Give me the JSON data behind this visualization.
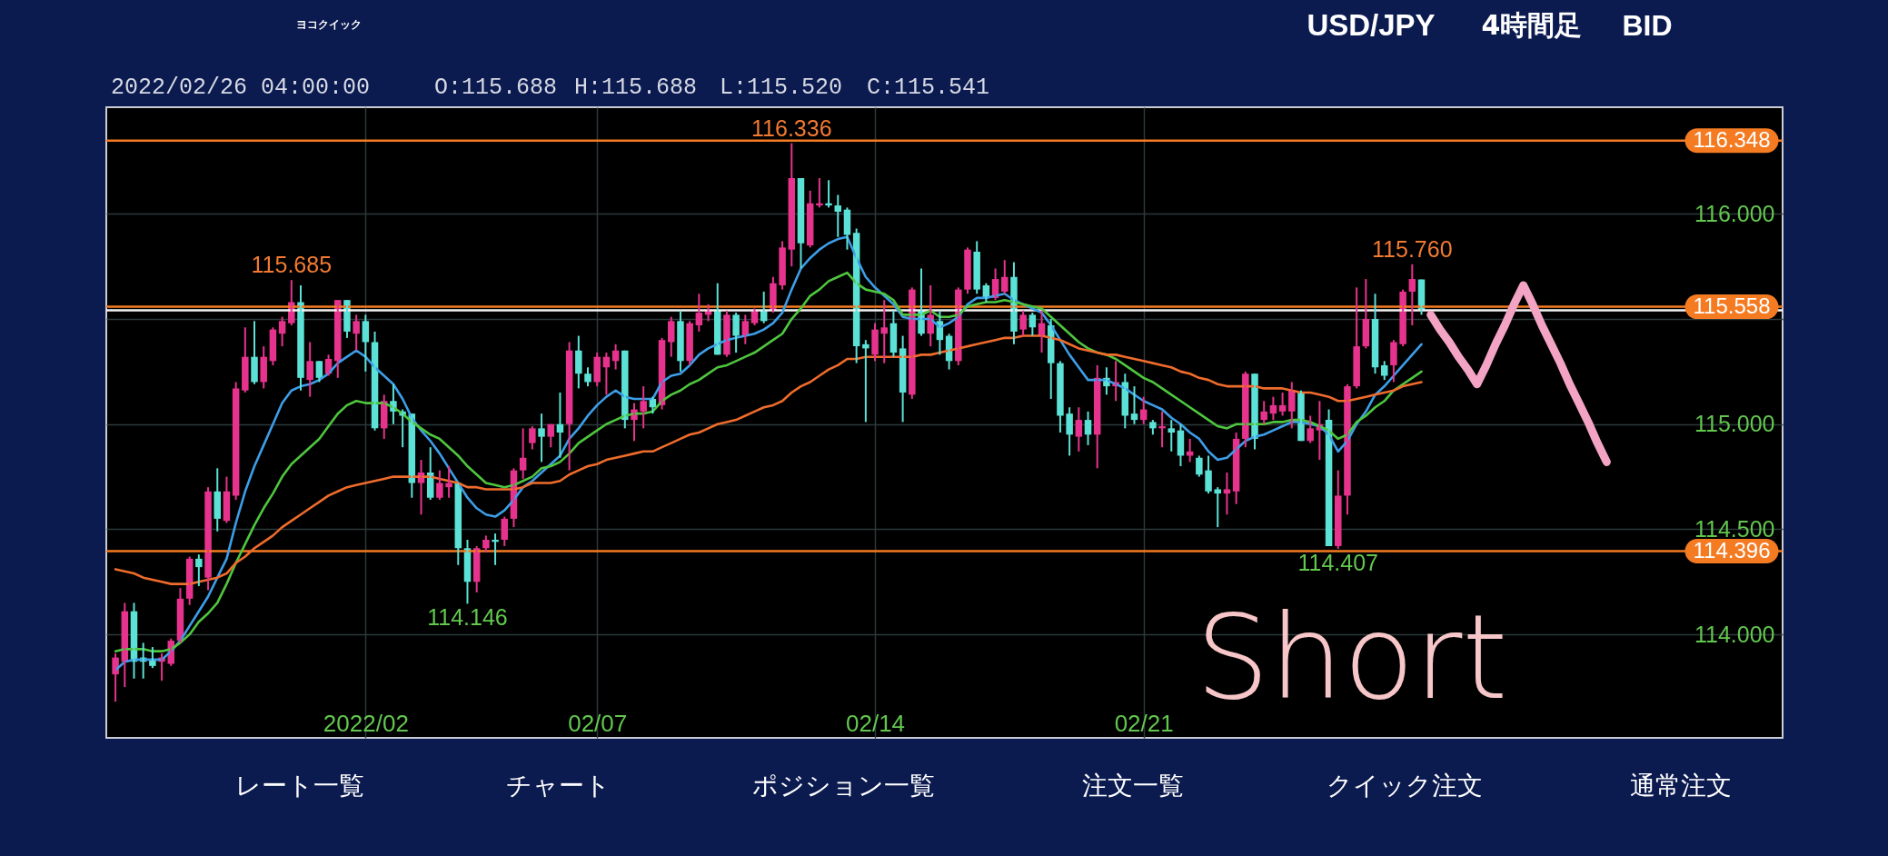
{
  "chart_data": {
    "type": "candlestick",
    "title": "USD/JPY",
    "categories": [
      null,
      null,
      null,
      null,
      null,
      null,
      null,
      null,
      null,
      null,
      null,
      null,
      null,
      null,
      null,
      null,
      null,
      null,
      null,
      null,
      null,
      null,
      null,
      null,
      null,
      null,
      null,
      "2022/02",
      null,
      null,
      null,
      null,
      null,
      null,
      null,
      null,
      null,
      null,
      null,
      null,
      null,
      null,
      null,
      null,
      null,
      null,
      null,
      null,
      null,
      null,
      null,
      null,
      "02/07",
      null,
      null,
      null,
      null,
      null,
      null,
      null,
      null,
      null,
      null,
      null,
      null,
      null,
      null,
      null,
      null,
      null,
      null,
      null,
      null,
      null,
      null,
      null,
      null,
      null,
      null,
      null,
      null,
      null,
      "02/14",
      null,
      null,
      null,
      null,
      null,
      null,
      null,
      null,
      null,
      null,
      null,
      null,
      null,
      null,
      null,
      null,
      null,
      null,
      null,
      null,
      null,
      null,
      null,
      null,
      null,
      null,
      null,
      null,
      "02/21",
      null,
      null,
      null,
      null,
      null,
      null,
      null,
      null,
      null,
      null,
      null,
      null,
      null,
      null,
      null,
      null,
      null,
      null,
      null,
      null,
      null,
      null,
      null,
      null,
      null,
      null,
      null,
      null,
      null,
      null,
      null,
      null,
      null,
      null,
      null,
      null,
      null,
      null,
      null,
      null,
      null,
      null,
      null,
      null,
      null,
      null,
      null,
      null,
      null,
      null,
      null,
      null,
      null,
      null,
      null,
      null,
      null,
      null,
      null,
      null,
      null,
      null,
      null,
      null,
      null,
      null,
      null,
      null
    ],
    "ohlc": [
      [
        113.81,
        113.91,
        113.68,
        113.89
      ],
      [
        113.87,
        114.15,
        113.75,
        114.11
      ],
      [
        114.11,
        114.15,
        113.79,
        113.87
      ],
      [
        113.89,
        113.96,
        113.79,
        113.87
      ],
      [
        113.88,
        113.94,
        113.84,
        113.85
      ],
      [
        113.87,
        113.91,
        113.78,
        113.89
      ],
      [
        113.86,
        113.98,
        113.85,
        113.97
      ],
      [
        113.97,
        114.22,
        113.96,
        114.17
      ],
      [
        114.17,
        114.37,
        114.14,
        114.36
      ],
      [
        114.36,
        114.38,
        114.23,
        114.32
      ],
      [
        114.27,
        114.7,
        114.21,
        114.68
      ],
      [
        114.68,
        114.79,
        114.49,
        114.55
      ],
      [
        114.54,
        114.75,
        114.53,
        114.68
      ],
      [
        114.66,
        115.2,
        114.64,
        115.17
      ],
      [
        115.16,
        115.46,
        115.15,
        115.32
      ],
      [
        115.32,
        115.49,
        115.19,
        115.2
      ],
      [
        115.2,
        115.37,
        115.17,
        115.32
      ],
      [
        115.3,
        115.46,
        115.28,
        115.45
      ],
      [
        115.43,
        115.51,
        115.37,
        115.49
      ],
      [
        115.48,
        115.685,
        115.47,
        115.58
      ],
      [
        115.58,
        115.66,
        115.16,
        115.22
      ],
      [
        115.21,
        115.39,
        115.13,
        115.3
      ],
      [
        115.3,
        115.3,
        115.2,
        115.22
      ],
      [
        115.24,
        115.33,
        115.23,
        115.31
      ],
      [
        115.3,
        115.59,
        115.22,
        115.59
      ],
      [
        115.59,
        115.59,
        115.41,
        115.44
      ],
      [
        115.43,
        115.52,
        115.35,
        115.49
      ],
      [
        115.49,
        115.52,
        115.25,
        115.39
      ],
      [
        115.39,
        115.44,
        114.97,
        114.98
      ],
      [
        114.98,
        115.14,
        114.93,
        115.11
      ],
      [
        115.11,
        115.19,
        115.0,
        115.06
      ],
      [
        115.06,
        115.07,
        114.89,
        115.04
      ],
      [
        115.05,
        115.05,
        114.65,
        114.72
      ],
      [
        114.72,
        114.83,
        114.57,
        114.77
      ],
      [
        114.77,
        114.89,
        114.64,
        114.65
      ],
      [
        114.65,
        114.78,
        114.64,
        114.72
      ],
      [
        114.7,
        114.8,
        114.65,
        114.72
      ],
      [
        114.72,
        114.72,
        114.33,
        114.41
      ],
      [
        114.41,
        114.45,
        114.146,
        114.25
      ],
      [
        114.25,
        114.42,
        114.2,
        114.41
      ],
      [
        114.41,
        114.47,
        114.39,
        114.45
      ],
      [
        114.45,
        114.48,
        114.33,
        114.44
      ],
      [
        114.45,
        114.56,
        114.42,
        114.55
      ],
      [
        114.55,
        114.79,
        114.51,
        114.78
      ],
      [
        114.78,
        114.98,
        114.74,
        114.84
      ],
      [
        114.91,
        114.99,
        114.88,
        114.98
      ],
      [
        114.98,
        115.05,
        114.82,
        114.94
      ],
      [
        114.94,
        115.0,
        114.89,
        115.0
      ],
      [
        115.0,
        115.15,
        114.84,
        114.96
      ],
      [
        115.0,
        115.39,
        114.78,
        115.35
      ],
      [
        115.35,
        115.42,
        115.17,
        115.24
      ],
      [
        115.24,
        115.27,
        115.18,
        115.2
      ],
      [
        115.2,
        115.34,
        115.18,
        115.32
      ],
      [
        115.27,
        115.34,
        115.14,
        115.32
      ],
      [
        115.3,
        115.38,
        115.26,
        115.35
      ],
      [
        115.35,
        115.35,
        114.98,
        115.02
      ],
      [
        115.02,
        115.1,
        114.92,
        115.07
      ],
      [
        115.06,
        115.18,
        114.98,
        115.11
      ],
      [
        115.12,
        115.13,
        115.05,
        115.08
      ],
      [
        115.09,
        115.41,
        115.07,
        115.4
      ],
      [
        115.39,
        115.51,
        115.32,
        115.49
      ],
      [
        115.49,
        115.54,
        115.25,
        115.3
      ],
      [
        115.3,
        115.49,
        115.28,
        115.48
      ],
      [
        115.47,
        115.62,
        115.44,
        115.53
      ],
      [
        115.52,
        115.57,
        115.49,
        115.54
      ],
      [
        115.54,
        115.67,
        115.33,
        115.33
      ],
      [
        115.33,
        115.54,
        115.32,
        115.52
      ],
      [
        115.52,
        115.53,
        115.34,
        115.42
      ],
      [
        115.42,
        115.52,
        115.38,
        115.49
      ],
      [
        115.48,
        115.55,
        115.47,
        115.54
      ],
      [
        115.54,
        115.63,
        115.48,
        115.49
      ],
      [
        115.54,
        115.7,
        115.53,
        115.67
      ],
      [
        115.66,
        115.87,
        115.64,
        115.84
      ],
      [
        115.83,
        116.336,
        115.75,
        116.17
      ],
      [
        116.17,
        116.17,
        115.74,
        115.86
      ],
      [
        115.85,
        116.11,
        115.84,
        116.05
      ],
      [
        116.04,
        116.17,
        116.03,
        116.05
      ],
      [
        116.05,
        116.16,
        116.03,
        116.04
      ],
      [
        116.04,
        116.09,
        115.89,
        116.01
      ],
      [
        116.02,
        116.03,
        115.83,
        115.9
      ],
      [
        115.91,
        115.93,
        115.29,
        115.37
      ],
      [
        115.38,
        115.4,
        115.01,
        115.36
      ],
      [
        115.33,
        115.48,
        115.3,
        115.45
      ],
      [
        115.43,
        115.59,
        115.29,
        115.46
      ],
      [
        115.48,
        115.54,
        115.32,
        115.34
      ],
      [
        115.36,
        115.42,
        115.01,
        115.15
      ],
      [
        115.14,
        115.65,
        115.12,
        115.64
      ],
      [
        115.54,
        115.74,
        115.42,
        115.43
      ],
      [
        115.43,
        115.66,
        115.37,
        115.52
      ],
      [
        115.49,
        115.54,
        115.33,
        115.4
      ],
      [
        115.42,
        115.43,
        115.26,
        115.3
      ],
      [
        115.3,
        115.65,
        115.28,
        115.64
      ],
      [
        115.64,
        115.84,
        115.62,
        115.83
      ],
      [
        115.82,
        115.87,
        115.62,
        115.64
      ],
      [
        115.66,
        115.67,
        115.58,
        115.6
      ],
      [
        115.6,
        115.74,
        115.59,
        115.69
      ],
      [
        115.63,
        115.78,
        115.62,
        115.7
      ],
      [
        115.7,
        115.77,
        115.38,
        115.44
      ],
      [
        115.45,
        115.54,
        115.42,
        115.52
      ],
      [
        115.52,
        115.53,
        115.42,
        115.46
      ],
      [
        115.42,
        115.54,
        115.34,
        115.48
      ],
      [
        115.47,
        115.5,
        115.12,
        115.29
      ],
      [
        115.29,
        115.3,
        114.96,
        115.04
      ],
      [
        115.05,
        115.08,
        114.85,
        114.95
      ],
      [
        114.94,
        115.08,
        114.87,
        115.02
      ],
      [
        115.02,
        115.06,
        114.9,
        114.95
      ],
      [
        114.95,
        115.28,
        114.79,
        115.22
      ],
      [
        115.22,
        115.27,
        115.14,
        115.18
      ],
      [
        115.18,
        115.3,
        115.11,
        115.2
      ],
      [
        115.2,
        115.24,
        114.98,
        115.04
      ],
      [
        115.05,
        115.18,
        115.0,
        115.02
      ],
      [
        115.02,
        115.13,
        115.0,
        115.07
      ],
      [
        115.01,
        115.02,
        114.95,
        114.98
      ],
      [
        114.98,
        115.06,
        114.89,
        114.99
      ],
      [
        114.98,
        115.02,
        114.87,
        114.96
      ],
      [
        114.97,
        115.0,
        114.8,
        114.85
      ],
      [
        114.85,
        114.93,
        114.82,
        114.87
      ],
      [
        114.84,
        114.85,
        114.75,
        114.76
      ],
      [
        114.78,
        114.85,
        114.67,
        114.68
      ],
      [
        114.69,
        114.7,
        114.51,
        114.67
      ],
      [
        114.67,
        114.77,
        114.57,
        114.69
      ],
      [
        114.68,
        114.96,
        114.62,
        114.93
      ],
      [
        114.93,
        115.25,
        114.89,
        115.24
      ],
      [
        115.24,
        115.24,
        114.88,
        114.93
      ],
      [
        115.02,
        115.11,
        115.0,
        115.06
      ],
      [
        115.05,
        115.13,
        115.02,
        115.09
      ],
      [
        115.06,
        115.15,
        115.04,
        115.09
      ],
      [
        115.06,
        115.2,
        114.98,
        115.16
      ],
      [
        115.15,
        115.16,
        114.92,
        114.92
      ],
      [
        114.92,
        115.04,
        114.91,
        114.98
      ],
      [
        114.97,
        115.11,
        114.83,
        115.0
      ],
      [
        115.02,
        115.07,
        114.42,
        114.42
      ],
      [
        114.42,
        114.78,
        114.407,
        114.66
      ],
      [
        114.66,
        115.19,
        114.57,
        115.18
      ],
      [
        115.18,
        115.65,
        115.17,
        115.37
      ],
      [
        115.37,
        115.69,
        115.36,
        115.5
      ],
      [
        115.5,
        115.62,
        115.24,
        115.27
      ],
      [
        115.28,
        115.3,
        115.21,
        115.23
      ],
      [
        115.28,
        115.4,
        115.2,
        115.39
      ],
      [
        115.38,
        115.64,
        115.37,
        115.63
      ],
      [
        115.63,
        115.76,
        115.47,
        115.69
      ],
      [
        115.688,
        115.688,
        115.52,
        115.541
      ],
      null,
      null,
      null,
      null,
      null,
      null,
      null,
      null,
      null,
      null,
      null,
      null,
      null,
      null,
      null,
      null,
      null,
      null,
      null,
      null,
      null,
      null,
      null,
      null,
      null,
      null,
      null,
      null,
      null,
      null,
      null,
      null,
      null,
      null,
      null,
      null,
      null,
      null
    ],
    "colors": [
      "#e6338d",
      "#e6338d",
      "#5ce1d6",
      "#5ce1d6",
      "#5ce1d6",
      "#e6338d",
      "#e6338d",
      "#e6338d",
      "#e6338d",
      "#5ce1d6",
      "#e6338d",
      "#5ce1d6",
      "#e6338d",
      "#e6338d",
      "#e6338d",
      "#5ce1d6",
      "#e6338d",
      "#e6338d",
      "#e6338d",
      "#e6338d",
      "#5ce1d6",
      "#e6338d",
      "#5ce1d6",
      "#e6338d",
      "#e6338d",
      "#5ce1d6",
      "#e6338d",
      "#5ce1d6",
      "#5ce1d6",
      "#e6338d",
      "#5ce1d6",
      "#5ce1d6",
      "#5ce1d6",
      "#e6338d",
      "#5ce1d6",
      "#e6338d",
      "#e6338d",
      "#5ce1d6",
      "#5ce1d6",
      "#e6338d",
      "#e6338d",
      "#5ce1d6",
      "#e6338d",
      "#e6338d",
      "#e6338d",
      "#e6338d",
      "#5ce1d6",
      "#e6338d",
      "#5ce1d6",
      "#e6338d",
      "#5ce1d6",
      "#5ce1d6",
      "#e6338d",
      "#e6338d",
      "#e6338d",
      "#5ce1d6",
      "#e6338d",
      "#e6338d",
      "#5ce1d6",
      "#e6338d",
      "#e6338d",
      "#5ce1d6",
      "#e6338d",
      "#e6338d",
      "#e6338d",
      "#5ce1d6",
      "#e6338d",
      "#5ce1d6",
      "#e6338d",
      "#e6338d",
      "#5ce1d6",
      "#e6338d",
      "#e6338d",
      "#e6338d",
      "#5ce1d6",
      "#e6338d",
      "#e6338d",
      "#5ce1d6",
      "#5ce1d6",
      "#5ce1d6",
      "#5ce1d6",
      "#5ce1d6",
      "#e6338d",
      "#e6338d",
      "#5ce1d6",
      "#5ce1d6",
      "#e6338d",
      "#5ce1d6",
      "#e6338d",
      "#5ce1d6",
      "#5ce1d6",
      "#e6338d",
      "#e6338d",
      "#5ce1d6",
      "#5ce1d6",
      "#e6338d",
      "#e6338d",
      "#5ce1d6",
      "#e6338d",
      "#5ce1d6",
      "#e6338d",
      "#5ce1d6",
      "#5ce1d6",
      "#5ce1d6",
      "#e6338d",
      "#5ce1d6",
      "#e6338d",
      "#5ce1d6",
      "#e6338d",
      "#5ce1d6",
      "#5ce1d6",
      "#e6338d",
      "#5ce1d6",
      "#e6338d",
      "#5ce1d6",
      "#5ce1d6",
      "#e6338d",
      "#5ce1d6",
      "#5ce1d6",
      "#5ce1d6",
      "#e6338d",
      "#e6338d",
      "#e6338d",
      "#5ce1d6",
      "#e6338d",
      "#e6338d",
      "#e6338d",
      "#e6338d",
      "#5ce1d6",
      "#e6338d",
      "#e6338d",
      "#5ce1d6",
      "#e6338d",
      "#e6338d",
      "#e6338d",
      "#e6338d",
      "#5ce1d6",
      "#5ce1d6",
      "#e6338d",
      "#e6338d",
      "#e6338d",
      "#5ce1d6",
      null,
      null,
      null,
      null,
      null,
      null,
      null,
      null,
      null,
      null,
      null,
      null,
      null,
      null,
      null,
      null,
      null,
      null,
      null,
      null,
      null,
      null,
      null,
      null,
      null,
      null,
      null,
      null,
      null,
      null,
      null,
      null,
      null,
      null,
      null,
      null,
      null,
      null
    ],
    "series": [
      {
        "type": "line",
        "color": "#3d9ee8",
        "values": [
          113.83,
          113.87,
          113.88,
          113.88,
          113.88,
          113.88,
          113.92,
          113.97,
          114.04,
          114.11,
          114.18,
          114.27,
          114.36,
          114.53,
          114.68,
          114.8,
          114.9,
          115.0,
          115.1,
          115.16,
          115.18,
          115.19,
          115.21,
          115.24,
          115.29,
          115.32,
          115.35,
          115.32,
          115.27,
          115.23,
          115.19,
          115.12,
          115.03,
          114.97,
          114.92,
          114.86,
          114.79,
          114.72,
          114.65,
          114.6,
          114.57,
          114.56,
          114.59,
          114.64,
          114.7,
          114.73,
          114.77,
          114.81,
          114.85,
          114.93,
          114.98,
          115.04,
          115.09,
          115.13,
          115.16,
          115.13,
          115.12,
          115.12,
          115.12,
          115.2,
          115.23,
          115.24,
          115.28,
          115.33,
          115.36,
          115.38,
          115.4,
          115.41,
          115.42,
          115.43,
          115.45,
          115.48,
          115.53,
          115.64,
          115.74,
          115.79,
          115.83,
          115.86,
          115.88,
          115.89,
          115.79,
          115.7,
          115.65,
          115.61,
          115.57,
          115.51,
          115.5,
          115.5,
          115.5,
          115.46,
          115.48,
          115.51,
          115.57,
          115.6,
          115.6,
          115.61,
          115.62,
          115.59,
          115.57,
          115.55,
          115.53,
          115.47,
          115.4,
          115.33,
          115.27,
          115.21,
          115.21,
          115.21,
          115.19,
          115.17,
          115.14,
          115.11,
          115.09,
          115.07,
          115.03,
          115.0,
          114.96,
          114.93,
          114.87,
          114.83,
          114.84,
          114.88,
          114.92,
          114.94,
          114.95,
          114.97,
          114.99,
          115.01,
          115.01,
          115.0,
          114.99,
          114.95,
          114.87,
          114.92,
          115.0,
          115.06,
          115.14,
          115.18,
          115.23,
          115.28,
          115.33,
          115.38,
          null,
          null,
          null,
          null,
          null,
          null,
          null,
          null,
          null,
          null,
          null,
          null,
          null,
          null,
          null,
          null,
          null,
          null,
          null,
          null,
          null,
          null,
          null,
          null,
          null,
          null,
          null,
          null,
          null,
          null,
          null,
          null,
          null,
          null,
          null,
          null,
          null,
          null
        ]
      },
      {
        "type": "line",
        "color": "#4fc63f",
        "values": [
          113.92,
          113.93,
          113.93,
          113.93,
          113.92,
          113.92,
          113.93,
          113.96,
          114.0,
          114.06,
          114.1,
          114.15,
          114.24,
          114.34,
          114.43,
          114.52,
          114.6,
          114.67,
          114.75,
          114.81,
          114.85,
          114.89,
          114.93,
          114.99,
          115.05,
          115.09,
          115.11,
          115.1,
          115.1,
          115.1,
          115.08,
          115.05,
          115.01,
          114.98,
          114.95,
          114.93,
          114.89,
          114.85,
          114.8,
          114.76,
          114.72,
          114.71,
          114.7,
          114.71,
          114.73,
          114.75,
          114.79,
          114.8,
          114.82,
          114.86,
          114.91,
          114.94,
          114.97,
          115.0,
          115.02,
          115.04,
          115.05,
          115.05,
          115.06,
          115.11,
          115.14,
          115.16,
          115.19,
          115.21,
          115.24,
          115.27,
          115.28,
          115.3,
          115.32,
          115.34,
          115.37,
          115.4,
          115.43,
          115.5,
          115.55,
          115.61,
          115.64,
          115.68,
          115.7,
          115.72,
          115.67,
          115.64,
          115.63,
          115.62,
          115.59,
          115.52,
          115.52,
          115.52,
          115.54,
          115.51,
          115.51,
          115.52,
          115.56,
          115.57,
          115.58,
          115.58,
          115.59,
          115.58,
          115.57,
          115.56,
          115.55,
          115.51,
          115.47,
          115.43,
          115.39,
          115.36,
          115.34,
          115.33,
          115.31,
          115.28,
          115.25,
          115.22,
          115.2,
          115.17,
          115.14,
          115.11,
          115.08,
          115.05,
          115.02,
          114.99,
          114.98,
          115.0,
          115.0,
          115.0,
          115.0,
          115.01,
          115.01,
          115.02,
          115.02,
          115.01,
          114.99,
          114.97,
          114.93,
          114.95,
          115.01,
          115.04,
          115.08,
          115.11,
          115.16,
          115.19,
          115.22,
          115.25,
          null,
          null,
          null,
          null,
          null,
          null,
          null,
          null,
          null,
          null,
          null,
          null,
          null,
          null,
          null,
          null,
          null,
          null,
          null,
          null,
          null,
          null,
          null,
          null,
          null,
          null,
          null,
          null,
          null,
          null,
          null,
          null,
          null,
          null,
          null,
          null,
          null,
          null
        ]
      },
      {
        "type": "line",
        "color": "#ef6c2c",
        "values": [
          114.31,
          114.3,
          114.29,
          114.27,
          114.26,
          114.25,
          114.24,
          114.24,
          114.24,
          114.25,
          114.26,
          114.27,
          114.29,
          114.34,
          114.37,
          114.41,
          114.44,
          114.47,
          114.51,
          114.54,
          114.57,
          114.6,
          114.63,
          114.66,
          114.68,
          114.7,
          114.71,
          114.72,
          114.73,
          114.74,
          114.75,
          114.75,
          114.75,
          114.75,
          114.75,
          114.74,
          114.73,
          114.72,
          114.7,
          114.7,
          114.69,
          114.69,
          114.69,
          114.69,
          114.7,
          114.72,
          114.72,
          114.72,
          114.73,
          114.76,
          114.78,
          114.8,
          114.81,
          114.83,
          114.84,
          114.85,
          114.86,
          114.87,
          114.87,
          114.89,
          114.91,
          114.93,
          114.95,
          114.96,
          114.98,
          115.0,
          115.01,
          115.02,
          115.04,
          115.06,
          115.08,
          115.09,
          115.11,
          115.15,
          115.18,
          115.2,
          115.23,
          115.26,
          115.28,
          115.31,
          115.31,
          115.32,
          115.32,
          115.32,
          115.32,
          115.32,
          115.32,
          115.33,
          115.33,
          115.34,
          115.35,
          115.36,
          115.37,
          115.38,
          115.39,
          115.4,
          115.41,
          115.41,
          115.42,
          115.42,
          115.42,
          115.41,
          115.4,
          115.38,
          115.36,
          115.35,
          115.34,
          115.33,
          115.33,
          115.32,
          115.31,
          115.3,
          115.29,
          115.28,
          115.27,
          115.25,
          115.24,
          115.22,
          115.21,
          115.19,
          115.18,
          115.18,
          115.18,
          115.18,
          115.17,
          115.17,
          115.17,
          115.16,
          115.15,
          115.15,
          115.14,
          115.13,
          115.11,
          115.11,
          115.12,
          115.13,
          115.14,
          115.15,
          115.16,
          115.18,
          115.19,
          115.2,
          null,
          null,
          null,
          null,
          null,
          null,
          null,
          null,
          null,
          null,
          null,
          null,
          null,
          null,
          null,
          null,
          null,
          null,
          null,
          null,
          null,
          null,
          null,
          null,
          null,
          null,
          null,
          null,
          null,
          null,
          null,
          null,
          null,
          null,
          null,
          null,
          null,
          null
        ]
      },
      {
        "type": "line",
        "color": "#f3a3c3",
        "values": [
          null,
          null,
          null,
          null,
          null,
          null,
          null,
          null,
          null,
          null,
          null,
          null,
          null,
          null,
          null,
          null,
          null,
          null,
          null,
          null,
          null,
          null,
          null,
          null,
          null,
          null,
          null,
          null,
          null,
          null,
          null,
          null,
          null,
          null,
          null,
          null,
          null,
          null,
          null,
          null,
          null,
          null,
          null,
          null,
          null,
          null,
          null,
          null,
          null,
          null,
          null,
          null,
          null,
          null,
          null,
          null,
          null,
          null,
          null,
          null,
          null,
          null,
          null,
          null,
          null,
          null,
          null,
          null,
          null,
          null,
          null,
          null,
          null,
          null,
          null,
          null,
          null,
          null,
          null,
          null,
          null,
          null,
          null,
          null,
          null,
          null,
          null,
          null,
          null,
          null,
          null,
          null,
          null,
          null,
          null,
          null,
          null,
          null,
          null,
          null,
          null,
          null,
          null,
          null,
          null,
          null,
          null,
          null,
          null,
          null,
          null,
          null,
          null,
          null,
          null,
          null,
          null,
          null,
          null,
          null,
          null,
          null,
          null,
          null,
          null,
          null,
          null,
          null,
          null,
          null,
          null,
          null,
          null,
          null,
          null,
          null,
          null,
          null,
          null,
          null,
          null,
          null,
          115.52,
          115.45,
          115.39,
          115.32,
          115.26,
          115.19,
          115.28,
          115.38,
          115.47,
          115.57,
          115.66,
          115.57,
          115.47,
          115.38,
          115.29,
          115.19,
          115.1,
          115.01,
          114.91,
          114.82,
          null,
          null,
          null,
          null,
          null,
          null,
          null,
          null,
          null,
          null,
          null,
          null,
          null,
          null,
          null,
          null,
          null,
          null
        ]
      }
    ],
    "ylim": [
      113.508,
      116.507
    ],
    "yticks": [
      {
        "value": 114,
        "label": "114.000"
      },
      {
        "value": 114.5,
        "label": "114.500"
      },
      {
        "value": 115,
        "label": "115.000"
      },
      {
        "value": 115.5,
        "label": null
      },
      {
        "value": 116,
        "label": "116.000"
      }
    ],
    "grid": true,
    "ref_lines": [
      {
        "axis": "y",
        "value": 116.348,
        "label": "116.348",
        "color": "#f47b22"
      },
      {
        "axis": "y",
        "value": 115.541,
        "color": "#f2f2f2"
      },
      {
        "axis": "y",
        "value": 115.558,
        "label": "115.558",
        "color": "#f47b22"
      },
      {
        "axis": "y",
        "value": 114.396,
        "label": "114.396",
        "color": "#f47b22"
      }
    ],
    "annotations": [
      {
        "text": "116.336",
        "y": 116.336
      },
      {
        "text": "115.685",
        "y": 115.685
      },
      {
        "text": "114.146",
        "y": 114.146
      },
      {
        "text": "115.760",
        "y": 115.76
      },
      {
        "text": "114.407",
        "y": 114.407
      },
      "4時間足",
      "BID",
      "ヨコクイック",
      "2022/02/26 04:00:00",
      "O:115.688",
      "H:115.688",
      "L:115.520",
      "C:115.541",
      "Short",
      "レート一覧",
      "チャート",
      "ポジション一覧",
      "注文一覧",
      "クイック注文",
      "通常注文"
    ]
  }
}
